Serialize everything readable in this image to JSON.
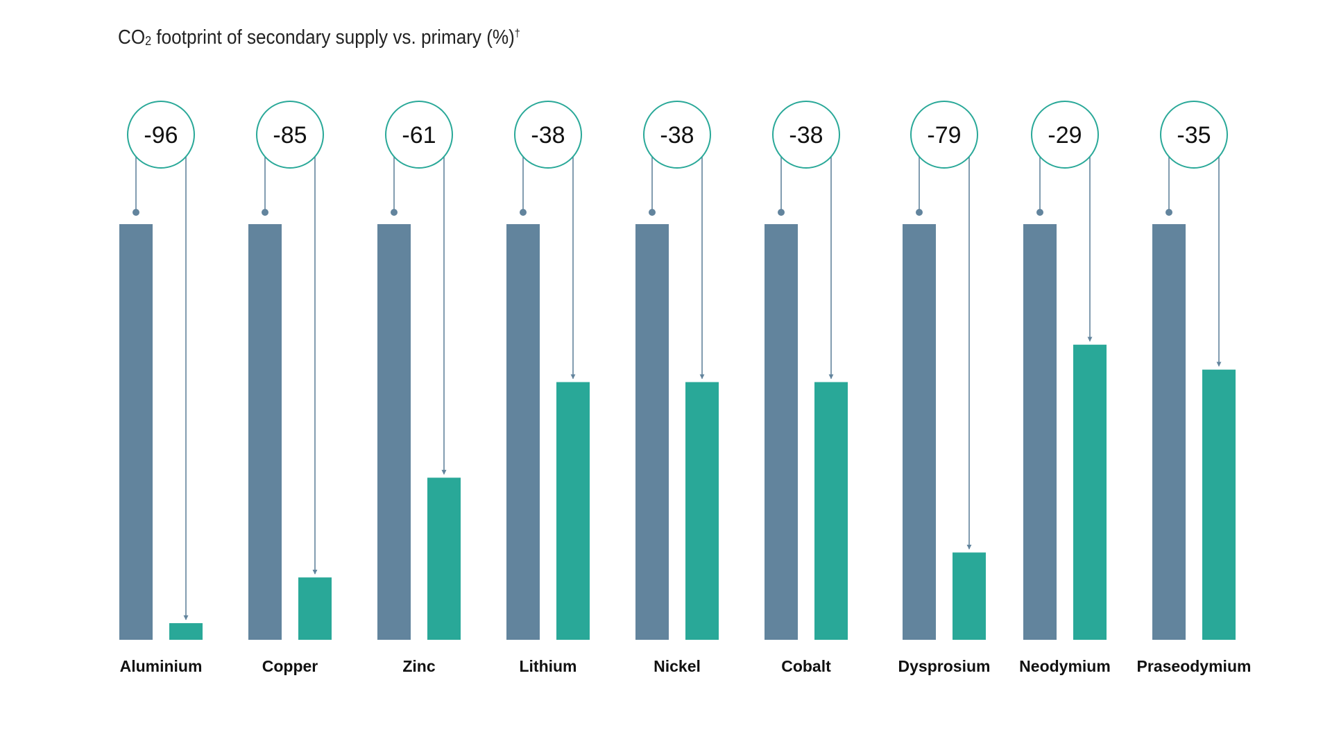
{
  "title": {
    "prefix": "CO",
    "subscript": "2",
    "main": " footprint of secondary supply vs. primary (%)",
    "superscript": "†"
  },
  "colors": {
    "primary_bar": "#62849D",
    "secondary_bar": "#29A898",
    "circle_stroke": "#29A898",
    "connector": "#62849D",
    "label_text": "#111111"
  },
  "chart_data": {
    "type": "bar",
    "title": "CO₂ footprint of secondary supply vs. primary (%)†",
    "xlabel": "",
    "ylabel": "",
    "categories": [
      "Aluminium",
      "Copper",
      "Zinc",
      "Lithium",
      "Nickel",
      "Cobalt",
      "Dysprosium",
      "Neodymium",
      "Praseodymium"
    ],
    "reductions": [
      "-96",
      "-85",
      "-61",
      "-38",
      "-38",
      "-38",
      "-79",
      "-29",
      "-35"
    ],
    "series": [
      {
        "values": [
          100,
          100,
          100,
          100,
          100,
          100,
          100,
          100,
          100
        ]
      },
      {
        "values": [
          4,
          15,
          39,
          62,
          62,
          62,
          21,
          71,
          65
        ]
      }
    ],
    "ylim": [
      0,
      100
    ],
    "grid": false,
    "legend": "none"
  }
}
